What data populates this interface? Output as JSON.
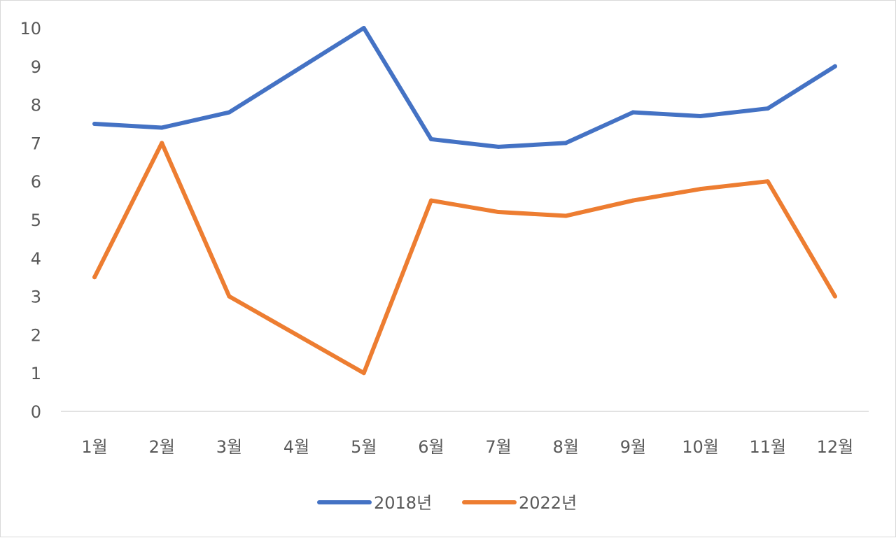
{
  "chart_data": {
    "type": "line",
    "categories": [
      "1월",
      "2월",
      "3월",
      "4월",
      "5월",
      "6월",
      "7월",
      "8월",
      "9월",
      "10월",
      "11월",
      "12월"
    ],
    "series": [
      {
        "name": "2018년",
        "color": "#4472c4",
        "values": [
          7.5,
          7.4,
          7.8,
          8.9,
          10,
          7.1,
          6.9,
          7.0,
          7.8,
          7.7,
          7.9,
          9.0
        ]
      },
      {
        "name": "2022년",
        "color": "#ed7d31",
        "values": [
          3.5,
          7.0,
          3.0,
          2.0,
          1.0,
          5.5,
          5.2,
          5.1,
          5.5,
          5.8,
          6.0,
          3.0
        ]
      }
    ],
    "ylim": [
      0,
      10
    ],
    "yticks": [
      0,
      1,
      2,
      3,
      4,
      5,
      6,
      7,
      8,
      9,
      10
    ],
    "grid": false,
    "legend_position": "bottom"
  }
}
